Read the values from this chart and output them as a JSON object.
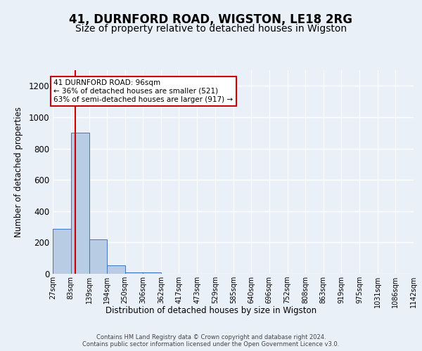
{
  "title": "41, DURNFORD ROAD, WIGSTON, LE18 2RG",
  "subtitle": "Size of property relative to detached houses in Wigston",
  "xlabel": "Distribution of detached houses by size in Wigston",
  "ylabel": "Number of detached properties",
  "bar_color": "#b8cce4",
  "bar_edge_color": "#4472c4",
  "subject_line_color": "#cc0000",
  "subject_size": 96,
  "annotation_text": "41 DURNFORD ROAD: 96sqm\n← 36% of detached houses are smaller (521)\n63% of semi-detached houses are larger (917) →",
  "annotation_box_color": "#ffffff",
  "annotation_box_edge": "#cc0000",
  "bin_edges": [
    27,
    83,
    139,
    194,
    250,
    306,
    362,
    417,
    473,
    529,
    585,
    640,
    696,
    752,
    808,
    863,
    919,
    975,
    1031,
    1086,
    1142
  ],
  "bin_labels": [
    "27sqm",
    "83sqm",
    "139sqm",
    "194sqm",
    "250sqm",
    "306sqm",
    "362sqm",
    "417sqm",
    "473sqm",
    "529sqm",
    "585sqm",
    "640sqm",
    "696sqm",
    "752sqm",
    "808sqm",
    "863sqm",
    "919sqm",
    "975sqm",
    "1031sqm",
    "1086sqm",
    "1142sqm"
  ],
  "counts": [
    285,
    900,
    220,
    55,
    10,
    10,
    0,
    0,
    0,
    0,
    0,
    0,
    0,
    0,
    0,
    0,
    0,
    0,
    0,
    0
  ],
  "ylim": [
    0,
    1300
  ],
  "yticks": [
    0,
    200,
    400,
    600,
    800,
    1000,
    1200
  ],
  "background_color": "#eaf0f8",
  "axes_background": "#eaf0f8",
  "grid_color": "#ffffff",
  "footer_text": "Contains HM Land Registry data © Crown copyright and database right 2024.\nContains public sector information licensed under the Open Government Licence v3.0.",
  "title_fontsize": 12,
  "subtitle_fontsize": 10
}
